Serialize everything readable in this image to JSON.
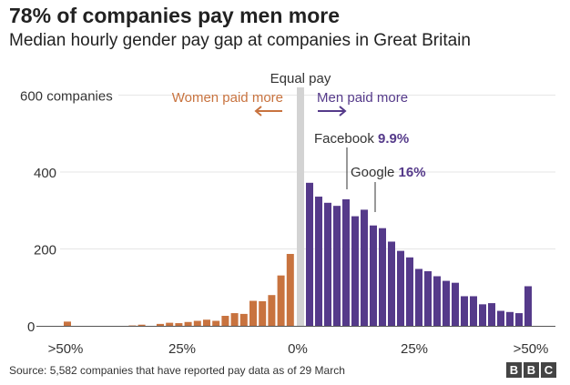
{
  "chart_data": {
    "type": "bar",
    "title": "78% of companies pay men more",
    "subtitle": "Median hourly gender pay gap at companies in Great Britain",
    "ylabel_top": "600 companies",
    "yticks": [
      "600 companies",
      "400",
      "200",
      "0"
    ],
    "ytick_values": [
      600,
      400,
      200,
      0
    ],
    "ylim": [
      0,
      600
    ],
    "xticks": [
      ">50%",
      "25%",
      "0%",
      "25%",
      ">50%"
    ],
    "grid": true,
    "women_series": {
      "label": "Women paid more",
      "color": "#c8733f",
      "values": [
        11,
        0,
        0,
        0,
        0,
        0,
        0,
        1,
        3,
        0,
        5,
        8,
        7,
        10,
        13,
        16,
        13,
        26,
        33,
        31,
        65,
        64,
        80,
        131,
        187
      ]
    },
    "men_series": {
      "label": "Men paid more",
      "color": "#553a8a",
      "values": [
        372,
        336,
        320,
        312,
        329,
        285,
        302,
        261,
        254,
        219,
        195,
        178,
        148,
        142,
        129,
        117,
        112,
        77,
        77,
        56,
        59,
        39,
        36,
        33,
        103
      ]
    },
    "equal_pay_label": "Equal pay",
    "annotations": [
      {
        "name": "Facebook",
        "value": "9.9%"
      },
      {
        "name": "Google",
        "value": "16%"
      }
    ]
  },
  "source": "Source: 5,582 companies that have reported pay data as of 29 March",
  "logo": "BBC"
}
